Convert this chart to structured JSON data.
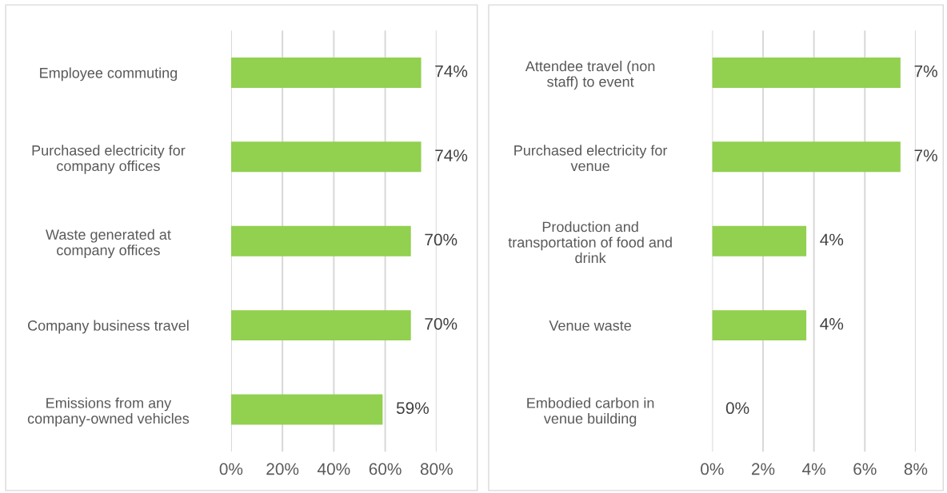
{
  "chart_data": [
    {
      "type": "bar",
      "orientation": "horizontal",
      "categories": [
        "Employee commuting",
        "Purchased electricity for\ncompany offices",
        "Waste generated at\ncompany offices",
        "Company business travel",
        "Emissions from any\ncompany-owned vehicles"
      ],
      "values": [
        74,
        74,
        70,
        70,
        59
      ],
      "color": "#92d050",
      "value_labels": [
        "74%",
        "74%",
        "70%",
        "70%",
        "59%"
      ],
      "xlim": [
        0,
        80
      ],
      "xticks": [
        {
          "value": 0,
          "label": "0%"
        },
        {
          "value": 20,
          "label": "20%"
        },
        {
          "value": 40,
          "label": "40%"
        },
        {
          "value": 60,
          "label": "60%"
        },
        {
          "value": 80,
          "label": "80%"
        }
      ],
      "grid": "x",
      "legend": false
    },
    {
      "type": "bar",
      "orientation": "horizontal",
      "categories": [
        "Attendee travel (non\nstaff) to event",
        "Purchased electricity for\nvenue",
        "Production and\ntransportation of food and\ndrink",
        "Venue waste",
        "Embodied carbon in\nvenue building"
      ],
      "values": [
        7.4,
        7.4,
        3.7,
        3.7,
        0
      ],
      "color": "#92d050",
      "value_labels": [
        "7%",
        "7%",
        "4%",
        "4%",
        "0%"
      ],
      "xlim": [
        0,
        8
      ],
      "xticks": [
        {
          "value": 0,
          "label": "0%"
        },
        {
          "value": 2,
          "label": "2%"
        },
        {
          "value": 4,
          "label": "4%"
        },
        {
          "value": 6,
          "label": "6%"
        },
        {
          "value": 8,
          "label": "8%"
        }
      ],
      "grid": "x",
      "legend": false
    }
  ]
}
